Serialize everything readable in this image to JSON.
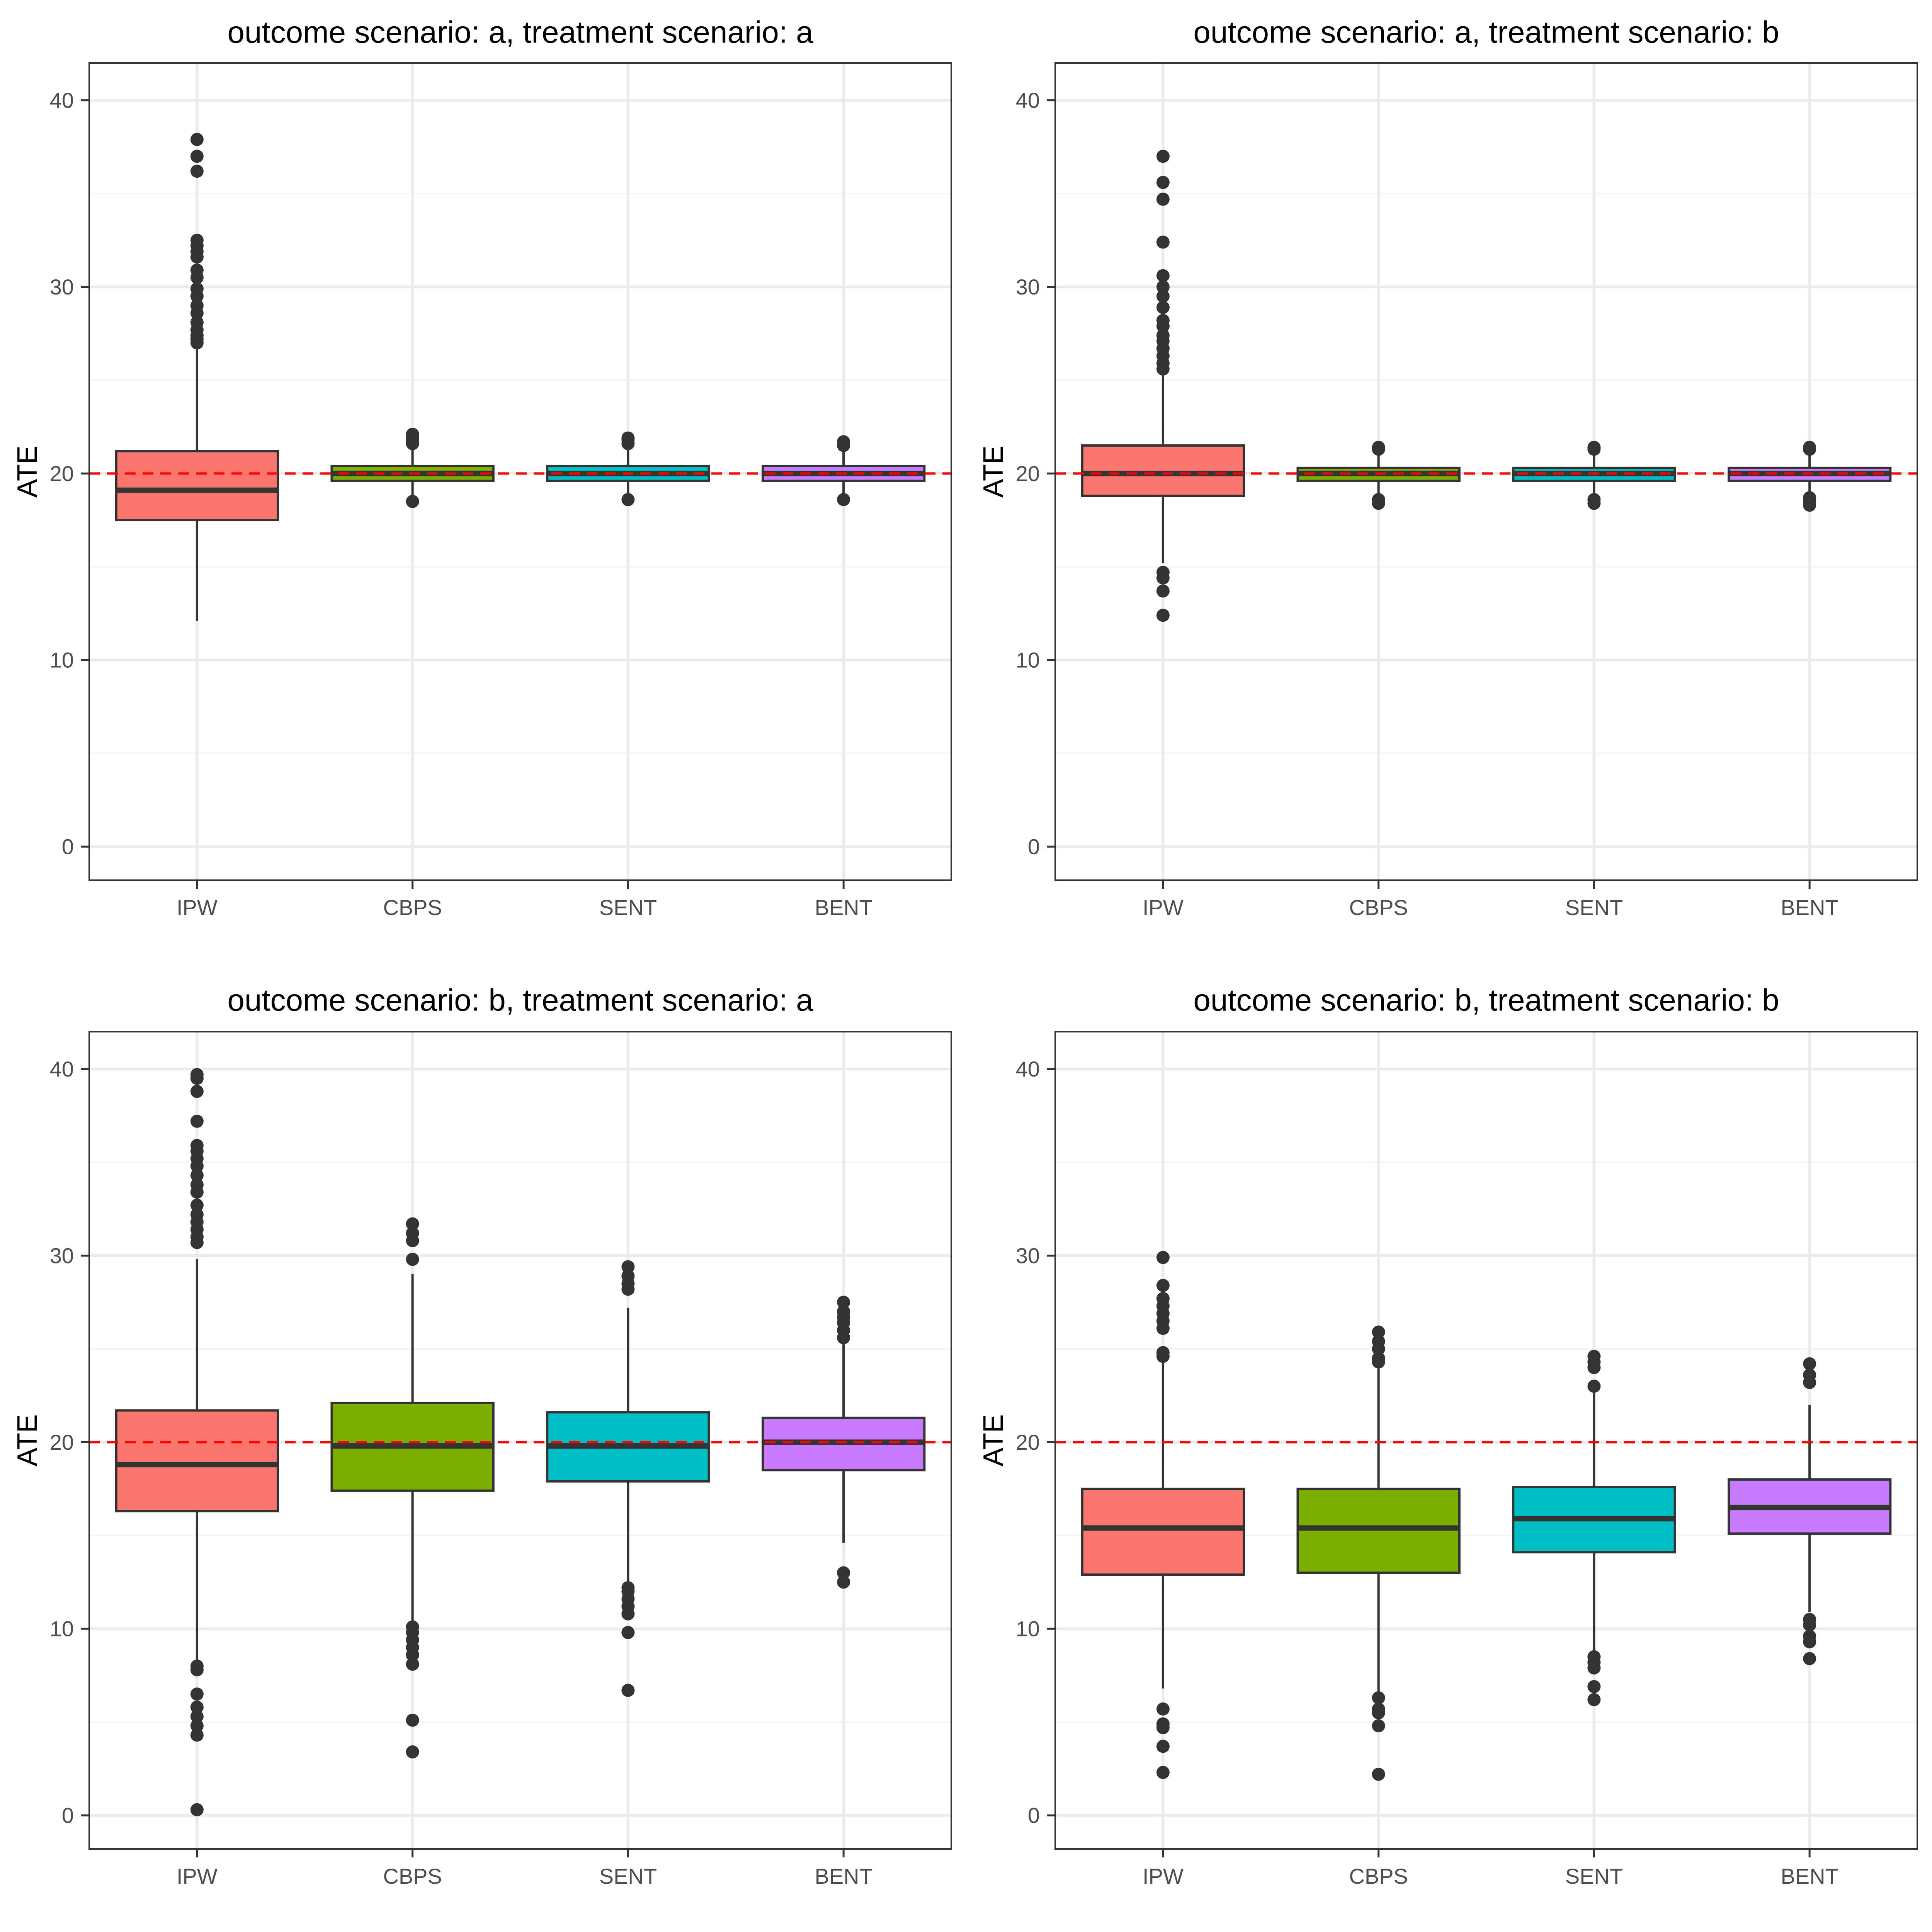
{
  "page": {
    "background": "#ffffff"
  },
  "style": {
    "panel_border": "#333333",
    "grid_major": "#ebebeb",
    "grid_minor": "#f5f5f5",
    "tick_text": "#4d4d4d",
    "title_text": "#000000",
    "box_outline": "#333333",
    "reference_line": "#ff0000"
  },
  "method_colors": {
    "IPW": "#F8766D",
    "CBPS": "#7CAE00",
    "SENT": "#00BFC4",
    "BENT": "#C77CFF"
  },
  "chart_data": [
    {
      "type": "box",
      "title": "outcome scenario: a, treatment scenario: a",
      "xlabel": "",
      "ylabel": "ATE",
      "ylim": [
        -1.8,
        42
      ],
      "yticks": [
        0,
        10,
        20,
        30,
        40
      ],
      "grid": true,
      "reference_line": 20,
      "categories": [
        "IPW",
        "CBPS",
        "SENT",
        "BENT"
      ],
      "boxes": [
        {
          "name": "IPW",
          "whisker_low": 12.1,
          "q1": 17.5,
          "median": 19.1,
          "q3": 21.2,
          "whisker_high": 26.9,
          "outliers": [
            27.0,
            27.2,
            27.4,
            27.7,
            28.1,
            28.6,
            29.0,
            29.5,
            29.9,
            30.5,
            30.9,
            31.6,
            31.9,
            32.2,
            32.5,
            36.2,
            37.0,
            37.9
          ]
        },
        {
          "name": "CBPS",
          "whisker_low": 18.7,
          "q1": 19.6,
          "median": 20.0,
          "q3": 20.4,
          "whisker_high": 21.5,
          "outliers": [
            18.5,
            21.6,
            21.8,
            22.0,
            22.1
          ]
        },
        {
          "name": "SENT",
          "whisker_low": 18.8,
          "q1": 19.6,
          "median": 20.0,
          "q3": 20.4,
          "whisker_high": 21.4,
          "outliers": [
            18.6,
            21.6,
            21.8,
            21.9
          ]
        },
        {
          "name": "BENT",
          "whisker_low": 18.8,
          "q1": 19.6,
          "median": 20.0,
          "q3": 20.4,
          "whisker_high": 21.4,
          "outliers": [
            18.6,
            21.5,
            21.6,
            21.7
          ]
        }
      ]
    },
    {
      "type": "box",
      "title": "outcome scenario: a, treatment scenario: b",
      "xlabel": "",
      "ylabel": "ATE",
      "ylim": [
        -1.8,
        42
      ],
      "yticks": [
        0,
        10,
        20,
        30,
        40
      ],
      "grid": true,
      "reference_line": 20,
      "categories": [
        "IPW",
        "CBPS",
        "SENT",
        "BENT"
      ],
      "boxes": [
        {
          "name": "IPW",
          "whisker_low": 15.2,
          "q1": 18.8,
          "median": 20.0,
          "q3": 21.5,
          "whisker_high": 25.4,
          "outliers": [
            12.4,
            13.7,
            14.4,
            14.7,
            25.6,
            25.9,
            26.3,
            26.7,
            27.1,
            27.4,
            27.9,
            28.2,
            28.9,
            29.5,
            30.0,
            30.6,
            32.4,
            34.7,
            35.6,
            37.0
          ]
        },
        {
          "name": "CBPS",
          "whisker_low": 18.8,
          "q1": 19.6,
          "median": 20.0,
          "q3": 20.3,
          "whisker_high": 21.1,
          "outliers": [
            18.4,
            18.6,
            21.3,
            21.4
          ]
        },
        {
          "name": "SENT",
          "whisker_low": 18.8,
          "q1": 19.6,
          "median": 20.0,
          "q3": 20.3,
          "whisker_high": 21.1,
          "outliers": [
            18.4,
            18.6,
            21.3,
            21.4
          ]
        },
        {
          "name": "BENT",
          "whisker_low": 18.9,
          "q1": 19.6,
          "median": 20.0,
          "q3": 20.3,
          "whisker_high": 21.1,
          "outliers": [
            18.3,
            18.5,
            18.7,
            21.3,
            21.4
          ]
        }
      ]
    },
    {
      "type": "box",
      "title": "outcome scenario: b, treatment scenario: a",
      "xlabel": "",
      "ylabel": "ATE",
      "ylim": [
        -1.8,
        42
      ],
      "yticks": [
        0,
        10,
        20,
        30,
        40
      ],
      "grid": true,
      "reference_line": 20,
      "categories": [
        "IPW",
        "CBPS",
        "SENT",
        "BENT"
      ],
      "boxes": [
        {
          "name": "IPW",
          "whisker_low": 8.2,
          "q1": 16.3,
          "median": 18.8,
          "q3": 21.7,
          "whisker_high": 29.8,
          "outliers": [
            0.3,
            4.3,
            4.8,
            5.3,
            5.8,
            6.5,
            7.8,
            8.0,
            30.7,
            31.0,
            31.4,
            31.8,
            32.2,
            32.7,
            33.4,
            33.8,
            34.3,
            34.8,
            35.2,
            35.6,
            35.9,
            37.2,
            38.8,
            39.5,
            39.7
          ]
        },
        {
          "name": "CBPS",
          "whisker_low": 10.3,
          "q1": 17.4,
          "median": 19.8,
          "q3": 22.1,
          "whisker_high": 29.0,
          "outliers": [
            3.4,
            5.1,
            8.1,
            8.6,
            9.0,
            9.4,
            9.8,
            10.1,
            29.8,
            30.8,
            31.2,
            31.7
          ]
        },
        {
          "name": "SENT",
          "whisker_low": 12.4,
          "q1": 17.9,
          "median": 19.8,
          "q3": 21.6,
          "whisker_high": 27.2,
          "outliers": [
            6.7,
            9.8,
            10.8,
            11.2,
            11.6,
            12.0,
            12.2,
            28.2,
            28.5,
            28.9,
            29.4
          ]
        },
        {
          "name": "BENT",
          "whisker_low": 14.6,
          "q1": 18.5,
          "median": 20.0,
          "q3": 21.3,
          "whisker_high": 25.4,
          "outliers": [
            12.5,
            13.0,
            25.6,
            26.0,
            26.4,
            26.7,
            27.0,
            27.5
          ]
        }
      ]
    },
    {
      "type": "box",
      "title": "outcome scenario: b, treatment scenario: b",
      "xlabel": "",
      "ylabel": "ATE",
      "ylim": [
        -1.8,
        42
      ],
      "yticks": [
        0,
        10,
        20,
        30,
        40
      ],
      "grid": true,
      "reference_line": 20,
      "categories": [
        "IPW",
        "CBPS",
        "SENT",
        "BENT"
      ],
      "boxes": [
        {
          "name": "IPW",
          "whisker_low": 6.8,
          "q1": 12.9,
          "median": 15.4,
          "q3": 17.5,
          "whisker_high": 24.4,
          "outliers": [
            2.3,
            3.7,
            4.7,
            4.9,
            5.7,
            24.6,
            24.8,
            26.1,
            26.5,
            26.9,
            27.3,
            27.7,
            28.4,
            29.9
          ]
        },
        {
          "name": "CBPS",
          "whisker_low": 6.5,
          "q1": 13.0,
          "median": 15.4,
          "q3": 17.5,
          "whisker_high": 24.1,
          "outliers": [
            2.2,
            4.8,
            5.5,
            5.7,
            6.3,
            24.3,
            24.5,
            25.0,
            25.4,
            25.9
          ]
        },
        {
          "name": "SENT",
          "whisker_low": 8.7,
          "q1": 14.1,
          "median": 15.9,
          "q3": 17.6,
          "whisker_high": 22.8,
          "outliers": [
            6.2,
            6.9,
            7.9,
            8.2,
            8.5,
            23.0,
            24.0,
            24.3,
            24.6
          ]
        },
        {
          "name": "BENT",
          "whisker_low": 10.9,
          "q1": 15.1,
          "median": 16.5,
          "q3": 18.0,
          "whisker_high": 22.0,
          "outliers": [
            8.4,
            9.3,
            9.6,
            10.2,
            10.5,
            23.2,
            23.6,
            24.2
          ]
        }
      ]
    }
  ]
}
